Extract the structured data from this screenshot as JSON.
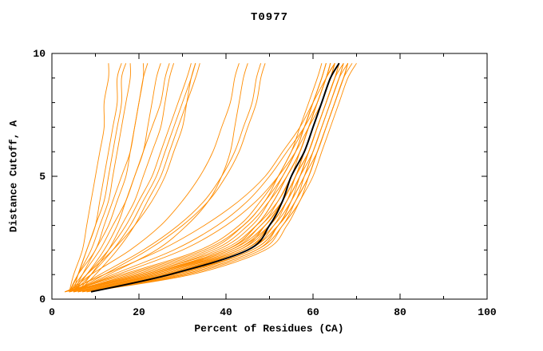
{
  "chart_data": {
    "type": "line",
    "title": "T0977",
    "xlabel": "Percent of Residues (CA)",
    "ylabel": "Distance Cutoff, A",
    "xlim": [
      0,
      100
    ],
    "ylim": [
      0,
      10
    ],
    "x_ticks": [
      0,
      20,
      40,
      60,
      80,
      100
    ],
    "y_ticks": [
      0,
      5,
      10
    ],
    "x_minor_step": 10,
    "y_minor_step": 1,
    "grid": false,
    "legend": "none",
    "orange_color": "#ff8c00",
    "black_color": "#000000",
    "cutoffs": [
      0.3,
      1,
      2,
      3,
      4,
      5,
      6,
      7,
      8,
      9,
      9.6
    ],
    "black_series": [
      9,
      27,
      45,
      50,
      53,
      55,
      58,
      60,
      62,
      64,
      66
    ],
    "orange_series": [
      [
        4,
        22,
        40,
        47,
        51,
        54,
        57,
        59,
        61,
        63,
        64
      ],
      [
        5,
        25,
        43,
        49,
        53,
        56,
        58,
        60,
        62,
        64,
        65
      ],
      [
        6,
        28,
        46,
        52,
        55,
        57,
        59,
        61,
        63,
        65,
        66
      ],
      [
        3,
        20,
        38,
        46,
        50,
        53,
        56,
        58,
        60,
        62,
        63
      ],
      [
        7,
        30,
        47,
        52,
        56,
        58,
        60,
        62,
        64,
        66,
        67
      ],
      [
        4,
        18,
        36,
        44,
        49,
        52,
        55,
        57,
        59,
        61,
        62
      ],
      [
        5,
        24,
        42,
        50,
        54,
        57,
        60,
        62,
        64,
        66,
        68
      ],
      [
        6,
        26,
        44,
        51,
        55,
        58,
        61,
        63,
        65,
        67,
        68
      ],
      [
        3,
        16,
        34,
        43,
        48,
        52,
        55,
        58,
        60,
        62,
        63
      ],
      [
        8,
        31,
        48,
        53,
        57,
        59,
        61,
        63,
        65,
        67,
        68
      ],
      [
        4,
        21,
        40,
        48,
        52,
        55,
        58,
        60,
        62,
        64,
        65
      ],
      [
        5,
        23,
        41,
        48,
        53,
        56,
        59,
        61,
        63,
        65,
        66
      ],
      [
        6,
        27,
        45,
        51,
        54,
        57,
        59,
        61,
        63,
        65,
        66
      ],
      [
        3,
        19,
        37,
        45,
        50,
        54,
        57,
        59,
        61,
        63,
        64
      ],
      [
        7,
        29,
        46,
        52,
        55,
        58,
        60,
        62,
        64,
        66,
        67
      ],
      [
        4,
        22,
        41,
        49,
        53,
        56,
        58,
        60,
        62,
        64,
        65
      ],
      [
        5,
        25,
        44,
        50,
        54,
        56,
        59,
        61,
        63,
        65,
        66
      ],
      [
        6,
        28,
        45,
        52,
        56,
        59,
        61,
        63,
        65,
        67,
        69
      ],
      [
        8,
        32,
        49,
        54,
        57,
        60,
        62,
        64,
        66,
        68,
        70
      ],
      [
        3,
        17,
        35,
        44,
        49,
        53,
        56,
        58,
        60,
        62,
        63
      ],
      [
        4,
        20,
        39,
        47,
        52,
        55,
        57,
        59,
        61,
        63,
        64
      ],
      [
        5,
        24,
        43,
        50,
        54,
        57,
        59,
        61,
        63,
        65,
        67
      ],
      [
        6,
        26,
        44,
        50,
        53,
        56,
        58,
        60,
        62,
        64,
        65
      ],
      [
        7,
        30,
        47,
        53,
        56,
        59,
        61,
        63,
        65,
        67,
        68
      ],
      [
        4,
        21,
        40,
        47,
        51,
        54,
        57,
        59,
        61,
        63,
        64
      ],
      [
        5,
        23,
        42,
        49,
        53,
        56,
        58,
        60,
        62,
        64,
        65
      ],
      [
        4,
        15,
        30,
        40,
        47,
        52,
        56,
        59,
        62,
        64,
        66
      ],
      [
        5,
        14,
        28,
        38,
        45,
        50,
        54,
        58,
        61,
        63,
        65
      ],
      [
        3,
        12,
        25,
        35,
        43,
        49,
        53,
        57,
        60,
        63,
        65
      ],
      [
        4,
        9,
        18,
        25,
        30,
        34,
        37,
        39,
        41,
        42,
        43
      ],
      [
        5,
        12,
        22,
        30,
        36,
        40,
        43,
        45,
        47,
        48,
        49
      ],
      [
        4,
        11,
        21,
        29,
        35,
        39,
        42,
        44,
        46,
        47,
        48
      ],
      [
        5,
        13,
        24,
        31,
        36,
        39,
        41,
        42,
        43,
        44,
        45
      ],
      [
        4,
        6,
        9,
        11,
        13,
        14,
        15,
        16,
        17,
        18,
        18
      ],
      [
        5,
        7,
        10,
        13,
        15,
        17,
        18,
        19,
        20,
        21,
        21
      ],
      [
        4,
        6,
        8,
        10,
        12,
        13,
        14,
        15,
        16,
        16,
        17
      ],
      [
        5,
        8,
        12,
        15,
        17,
        19,
        21,
        22,
        23,
        24,
        25
      ],
      [
        6,
        9,
        13,
        16,
        19,
        21,
        23,
        25,
        26,
        27,
        28
      ],
      [
        4,
        7,
        11,
        14,
        17,
        19,
        21,
        23,
        25,
        26,
        27
      ],
      [
        5,
        8,
        13,
        17,
        20,
        23,
        25,
        27,
        29,
        31,
        32
      ],
      [
        6,
        10,
        15,
        19,
        22,
        25,
        27,
        29,
        31,
        33,
        34
      ],
      [
        4,
        6,
        10,
        12,
        14,
        16,
        18,
        19,
        20,
        21,
        22
      ],
      [
        5,
        9,
        14,
        18,
        21,
        24,
        26,
        28,
        30,
        32,
        33
      ],
      [
        4,
        5,
        7,
        8,
        9,
        10,
        11,
        12,
        12,
        13,
        13
      ],
      [
        5,
        6,
        8,
        10,
        11,
        12,
        13,
        14,
        15,
        15,
        16
      ],
      [
        4,
        8,
        14,
        19,
        23,
        26,
        28,
        30,
        31,
        32,
        33
      ]
    ]
  }
}
